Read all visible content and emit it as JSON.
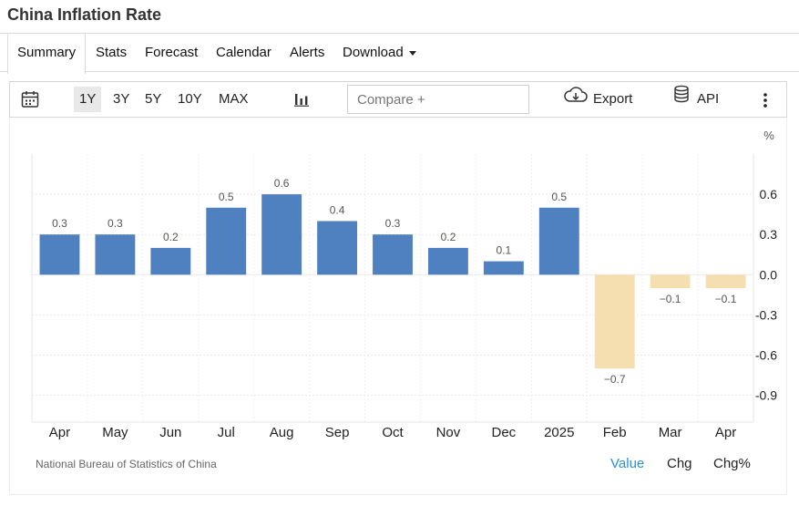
{
  "header": {
    "title": "China Inflation Rate"
  },
  "tabs": [
    {
      "label": "Summary"
    },
    {
      "label": "Stats"
    },
    {
      "label": "Forecast"
    },
    {
      "label": "Calendar"
    },
    {
      "label": "Alerts"
    },
    {
      "label": "Download"
    }
  ],
  "toolbar": {
    "ranges": [
      "1Y",
      "3Y",
      "5Y",
      "10Y",
      "MAX"
    ],
    "active_range": "1Y",
    "compare_placeholder": "Compare +",
    "export_label": "Export",
    "api_label": "API"
  },
  "chart_data": {
    "type": "bar",
    "categories": [
      "Apr",
      "May",
      "Jun",
      "Jul",
      "Aug",
      "Sep",
      "Oct",
      "Nov",
      "Dec",
      "2025",
      "Feb",
      "Mar",
      "Apr"
    ],
    "values": [
      0.3,
      0.3,
      0.2,
      0.5,
      0.6,
      0.4,
      0.3,
      0.2,
      0.1,
      0.5,
      -0.7,
      -0.1,
      -0.1
    ],
    "data_labels": [
      "0.3",
      "0.3",
      "0.2",
      "0.5",
      "0.6",
      "0.4",
      "0.3",
      "0.2",
      "0.1",
      "0.5",
      "−0.7",
      "−0.1",
      "−0.1"
    ],
    "y_ticks": [
      0.6,
      0.3,
      0.0,
      -0.3,
      -0.6,
      -0.9
    ],
    "y_tick_labels": [
      "0.6",
      "0.3",
      "0.0",
      "-0.3",
      "-0.6",
      "-0.9"
    ],
    "ylabel": "%",
    "ylim": [
      -1.1,
      0.9
    ],
    "grid": true,
    "positive_color": "#4f81c1",
    "negative_color": "#f5deb0",
    "yaxis_position": "right"
  },
  "footer": {
    "source": "National Bureau of Statistics of China",
    "value_label": "Value",
    "chg_label": "Chg",
    "chg_pct_label": "Chg%",
    "active_color": "#2f8fd6"
  }
}
